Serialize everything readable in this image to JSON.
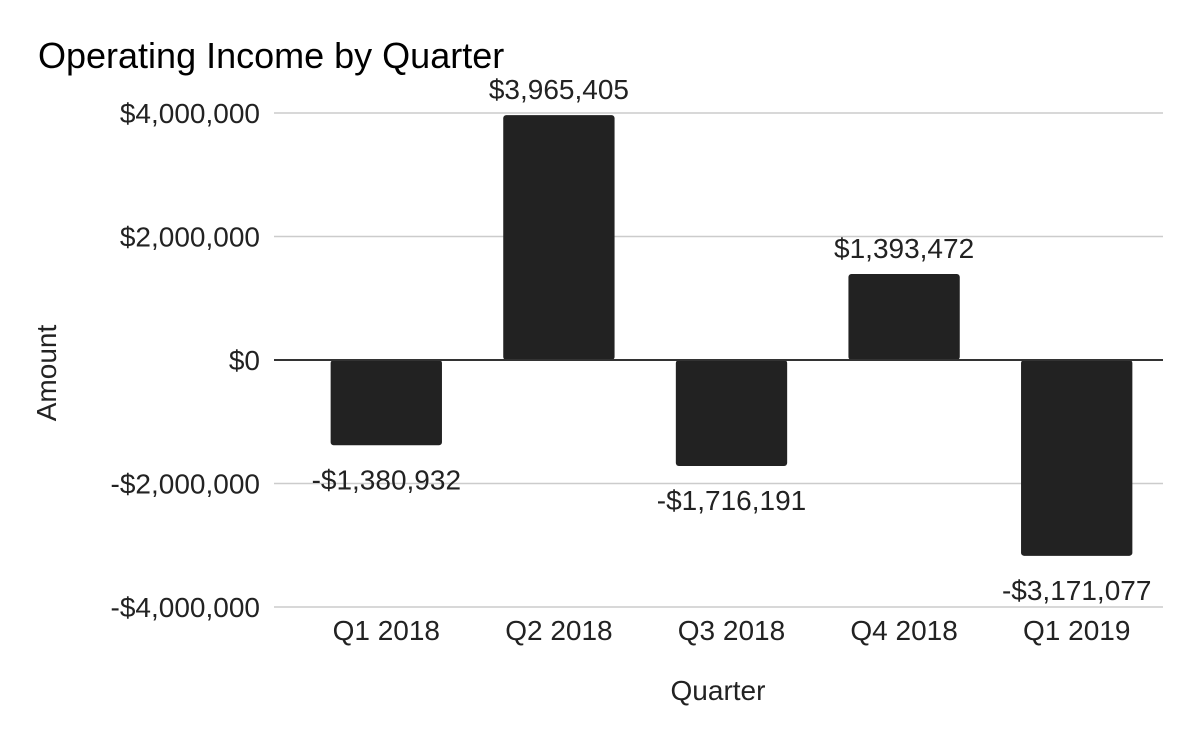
{
  "chart_data": {
    "type": "bar",
    "title": "Operating Income by Quarter",
    "xlabel": "Quarter",
    "ylabel": "Amount",
    "categories": [
      "Q1 2018",
      "Q2 2018",
      "Q3 2018",
      "Q4 2018",
      "Q1 2019"
    ],
    "values": [
      -1380932,
      3965405,
      -1716191,
      1393472,
      -3171077
    ],
    "data_labels": [
      "-$1,380,932",
      "$3,965,405",
      "-$1,716,191",
      "$1,393,472",
      "-$3,171,077"
    ],
    "ylim": [
      -4000000,
      4000000
    ],
    "y_ticks": [
      4000000,
      2000000,
      0,
      -2000000,
      -4000000
    ],
    "y_tick_labels": [
      "$4,000,000",
      "$2,000,000",
      "$0",
      "-$2,000,000",
      "-$4,000,000"
    ],
    "grid": true,
    "legend": "none",
    "bar_color": "#222222",
    "gridline_color": "#cccccc",
    "zero_line_color": "#333333"
  }
}
